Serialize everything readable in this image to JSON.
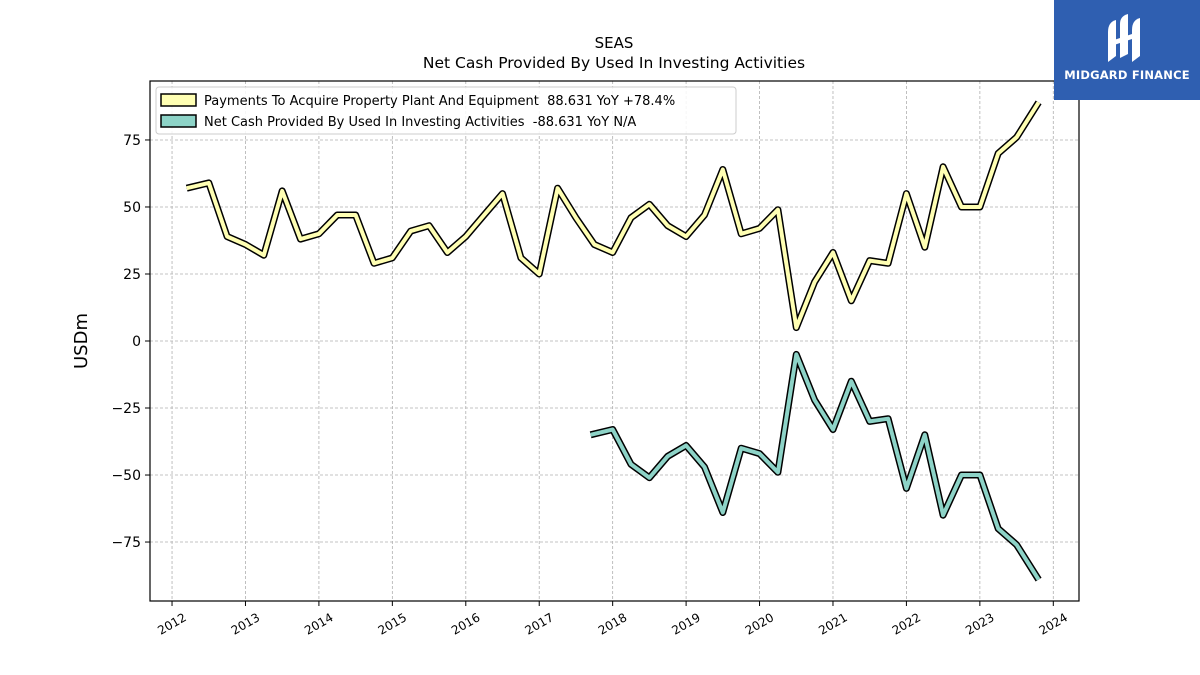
{
  "brand": {
    "name": "MIDGARD FINANCE",
    "color": "#2f5fb1"
  },
  "chart_data": {
    "type": "line",
    "title": "SEAS",
    "subtitle": "Net Cash Provided By Used In Investing Activities",
    "ylabel": "USDm",
    "xlabel": "",
    "xlim": [
      2011.7,
      2024.35
    ],
    "ylim": [
      -97,
      97
    ],
    "yticks": [
      -75,
      -50,
      -25,
      0,
      25,
      50,
      75
    ],
    "xticks": [
      2012,
      2013,
      2014,
      2015,
      2016,
      2017,
      2018,
      2019,
      2020,
      2021,
      2022,
      2023,
      2024
    ],
    "grid": true,
    "legend_position": "upper-left",
    "series": [
      {
        "name": "Payments To Acquire Property Plant And Equipment  88.631 YoY +78.4%",
        "color": "#ffffb3",
        "x": [
          2012.2,
          2012.5,
          2012.75,
          2013.0,
          2013.25,
          2013.5,
          2013.75,
          2014.0,
          2014.25,
          2014.5,
          2014.75,
          2015.0,
          2015.25,
          2015.5,
          2015.75,
          2016.0,
          2016.25,
          2016.5,
          2016.75,
          2017.0,
          2017.25,
          2017.5,
          2017.75,
          2018.0,
          2018.25,
          2018.5,
          2018.75,
          2019.0,
          2019.25,
          2019.5,
          2019.75,
          2020.0,
          2020.25,
          2020.5,
          2020.75,
          2021.0,
          2021.25,
          2021.5,
          2021.75,
          2022.0,
          2022.25,
          2022.5,
          2022.75,
          2023.0,
          2023.25,
          2023.5,
          2023.8
        ],
        "y": [
          57,
          59,
          39,
          36,
          32,
          56,
          38,
          40,
          47,
          47,
          29,
          31,
          41,
          43,
          33,
          39,
          47,
          55,
          31,
          25,
          57,
          46,
          36,
          33,
          46,
          51,
          43,
          39,
          47,
          64,
          40,
          42,
          49,
          5,
          22,
          33,
          15,
          30,
          29,
          55,
          35,
          65,
          50,
          50,
          70,
          76,
          89
        ]
      },
      {
        "name": "Net Cash Provided By Used In Investing Activities  -88.631 YoY N/A",
        "color": "#8dd3c7",
        "x": [
          2017.7,
          2018.0,
          2018.25,
          2018.5,
          2018.75,
          2019.0,
          2019.25,
          2019.5,
          2019.75,
          2020.0,
          2020.25,
          2020.5,
          2020.75,
          2021.0,
          2021.25,
          2021.5,
          2021.75,
          2022.0,
          2022.25,
          2022.5,
          2022.75,
          2023.0,
          2023.25,
          2023.5,
          2023.8
        ],
        "y": [
          -35,
          -33,
          -46,
          -51,
          -43,
          -39,
          -47,
          -64,
          -40,
          -42,
          -49,
          -5,
          -22,
          -33,
          -15,
          -30,
          -29,
          -55,
          -35,
          -65,
          -50,
          -50,
          -70,
          -76,
          -89
        ]
      }
    ]
  }
}
